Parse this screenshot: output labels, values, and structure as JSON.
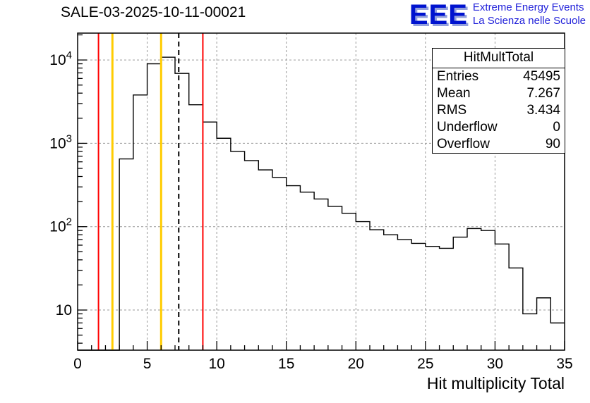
{
  "title": "SALE-03-2025-10-11-00021",
  "logo": {
    "acronym": "EEE",
    "line1": "Extreme Energy Events",
    "line2": "La Scienza nelle Scuole",
    "accent_color": "#0013cf",
    "shadow_color": "#93a0dd",
    "text_color": "#1f1fd9"
  },
  "stats": {
    "title": "HitMultTotal",
    "rows": [
      {
        "label": "Entries",
        "value": "45495"
      },
      {
        "label": "Mean",
        "value": "7.267"
      },
      {
        "label": "RMS",
        "value": "3.434"
      },
      {
        "label": "Underflow",
        "value": "0"
      },
      {
        "label": "Overflow",
        "value": "90"
      }
    ]
  },
  "chart_data": {
    "type": "bar",
    "subtype": "step-histogram-log-y",
    "title": "SALE-03-2025-10-11-00021",
    "xlabel": "Hit multiplicity Total",
    "ylabel": "",
    "xlim": [
      0,
      35
    ],
    "ylog_range": [
      3.3,
      21000
    ],
    "x_major_ticks": [
      0,
      5,
      10,
      15,
      20,
      25,
      30,
      35
    ],
    "y_major_ticks": [
      {
        "value": 10,
        "exp": ""
      },
      {
        "value": 100,
        "exp": "2"
      },
      {
        "value": 1000,
        "exp": "3"
      },
      {
        "value": 10000,
        "exp": "4"
      }
    ],
    "grid": true,
    "legend": "none",
    "bin_start": 0,
    "bin_width": 1,
    "counts": [
      0,
      0,
      0,
      650,
      3800,
      9000,
      10800,
      6900,
      2900,
      1800,
      1150,
      800,
      620,
      480,
      390,
      310,
      260,
      215,
      175,
      145,
      115,
      92,
      80,
      70,
      63,
      58,
      55,
      75,
      95,
      90,
      62,
      32,
      9,
      14,
      7
    ],
    "vlines": [
      {
        "x": 1.5,
        "color": "#ff0000",
        "width": 2,
        "dash": "",
        "name": "red-marker-low"
      },
      {
        "x": 2.5,
        "color": "#ffcc00",
        "width": 3,
        "dash": "",
        "name": "yellow-marker-low"
      },
      {
        "x": 6,
        "color": "#ffcc00",
        "width": 3,
        "dash": "",
        "name": "yellow-marker-high"
      },
      {
        "x": 7.267,
        "color": "#000000",
        "width": 2,
        "dash": "7 5",
        "name": "mean-dashed-line"
      },
      {
        "x": 9,
        "color": "#ff0000",
        "width": 2,
        "dash": "",
        "name": "red-marker-high"
      }
    ],
    "colors": {
      "grid": "#999999",
      "histogram": "#000000",
      "frame": "#000000"
    }
  }
}
